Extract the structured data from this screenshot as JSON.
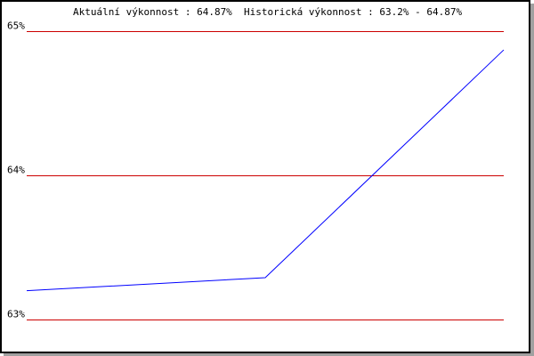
{
  "chart_data": {
    "type": "line",
    "title": "Aktuální výkonnost : 64.87%  Historická výkonnost : 63.2% - 64.87%",
    "x": [
      0,
      1,
      2
    ],
    "series": [
      {
        "values": [
          63.2,
          63.29,
          64.87
        ],
        "color": "#0000ff"
      }
    ],
    "ylim": [
      63,
      65
    ],
    "yticks": [
      {
        "value": 63,
        "label": "63%"
      },
      {
        "value": 64,
        "label": "64%"
      },
      {
        "value": 65,
        "label": "65%"
      }
    ],
    "grid": true,
    "grid_color": "#cc0000",
    "legend": "none"
  }
}
